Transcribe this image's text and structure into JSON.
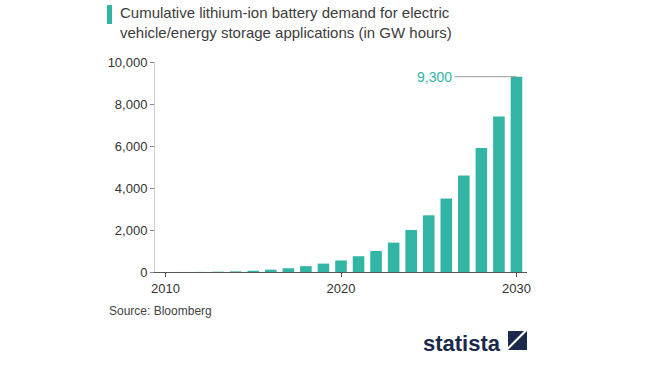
{
  "chart_data": {
    "type": "bar",
    "title": "Cumulative lithium-ion battery demand for electric\nvehicle/energy storage applications (in GW hours)",
    "x": [
      2010,
      2011,
      2012,
      2013,
      2014,
      2015,
      2016,
      2017,
      2018,
      2019,
      2020,
      2021,
      2022,
      2023,
      2024,
      2025,
      2026,
      2027,
      2028,
      2029,
      2030
    ],
    "values": [
      1,
      2,
      5,
      15,
      30,
      60,
      110,
      180,
      280,
      400,
      550,
      750,
      1000,
      1400,
      2000,
      2700,
      3500,
      4600,
      5900,
      7400,
      9300
    ],
    "color": "#33b5a5",
    "xlim": [
      2009.4,
      2030.6
    ],
    "xticks": [
      2010,
      2020,
      2030
    ],
    "ylim": [
      0,
      10000
    ],
    "yticks": [
      0,
      {
        "value": 2000,
        "label": "2,000"
      },
      {
        "value": 4000,
        "label": "4,000"
      },
      {
        "value": 6000,
        "label": "6,000"
      },
      {
        "value": 8000,
        "label": "8,000"
      },
      {
        "value": 10000,
        "label": "10,000"
      }
    ],
    "grid": false,
    "annotations": [
      {
        "text": "9,300",
        "x": 2030,
        "y": 9300
      }
    ],
    "source": "Source: Bloomberg",
    "brand": "statista"
  }
}
